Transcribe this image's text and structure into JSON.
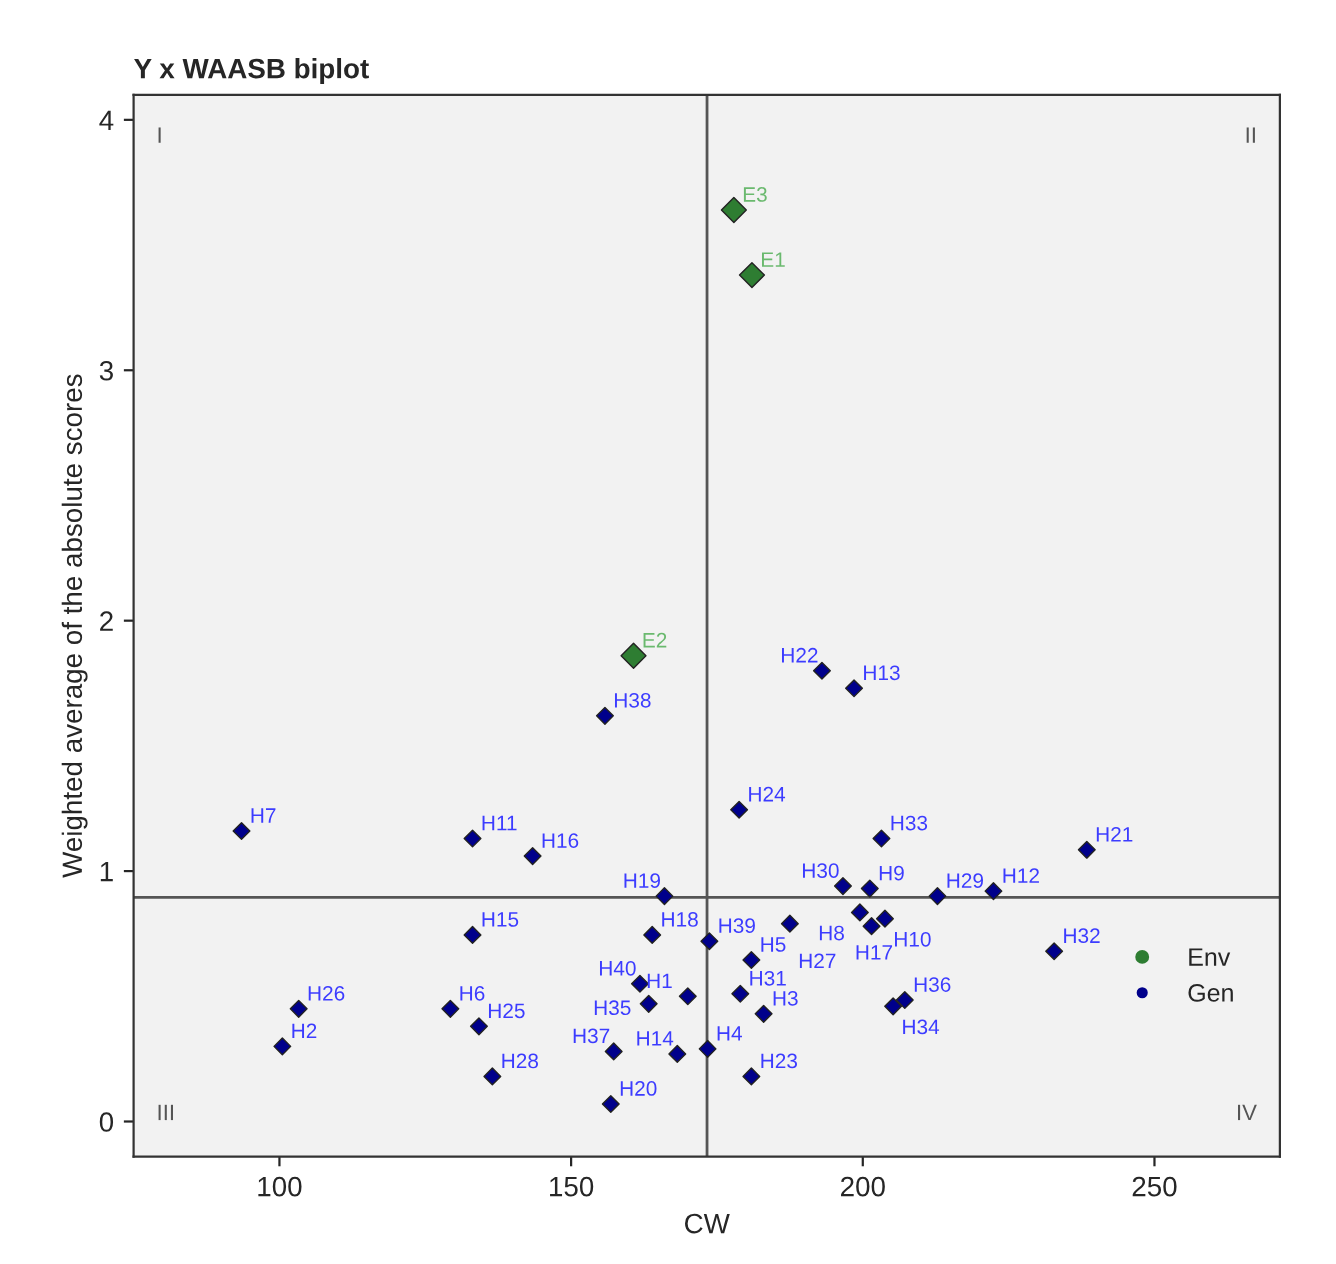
{
  "chart_data": {
    "type": "scatter",
    "title": "Y x WAASB biplot",
    "xlabel": "CW",
    "ylabel": "Weighted average of the absolute scores",
    "xlim": [
      75,
      271.5
    ],
    "ylim": [
      -0.14,
      4.1
    ],
    "xticks": [
      100,
      150,
      200,
      250
    ],
    "yticks": [
      0,
      1,
      2,
      3,
      4
    ],
    "grid": false,
    "legend": "bottom right",
    "marker": "diamond",
    "series": [
      {
        "name": "Env",
        "color": "#2e7d32",
        "x": [
          181.0,
          160.7,
          177.9
        ],
        "values": [
          3.38,
          1.86,
          3.64
        ]
      },
      {
        "name": "Gen",
        "color": "#00008b",
        "x": [
          170.0,
          100.5,
          183.0,
          173.4,
          180.9,
          129.3,
          93.5,
          199.5,
          201.2,
          203.8,
          133.1,
          222.4,
          198.5,
          168.2,
          133.1,
          143.4,
          201.5,
          163.9,
          166.0,
          156.8,
          238.4,
          193.0,
          180.9,
          178.8,
          134.2,
          103.3,
          187.5,
          136.5,
          212.8,
          196.6,
          179.0,
          232.8,
          203.2,
          205.2,
          163.3,
          207.2,
          157.3,
          155.8,
          173.7,
          161.8
        ],
        "values": [
          0.5,
          0.3,
          0.43,
          0.29,
          0.645,
          0.45,
          1.16,
          0.835,
          0.93,
          0.81,
          1.13,
          0.92,
          1.73,
          0.27,
          0.745,
          1.06,
          0.78,
          0.745,
          0.9,
          0.07,
          1.085,
          1.8,
          0.18,
          1.245,
          0.38,
          0.45,
          0.79,
          0.18,
          0.9,
          0.94,
          0.51,
          0.68,
          1.13,
          0.46,
          0.47,
          0.485,
          0.28,
          1.62,
          0.72,
          0.55
        ]
      }
    ],
    "ref_lines": [
      {
        "axis": "x",
        "value": 173.3,
        "color": "#555555"
      },
      {
        "axis": "y",
        "value": 0.895,
        "color": "#555555"
      }
    ],
    "annotations": [
      "I",
      "II",
      "III",
      "IV",
      {
        "text": "E1",
        "x": 181.0,
        "y": 3.38
      },
      {
        "text": "E2",
        "x": 160.7,
        "y": 1.86
      },
      {
        "text": "E3",
        "x": 177.9,
        "y": 3.64
      },
      {
        "text": "H1",
        "x": 170.0,
        "y": 0.5
      },
      {
        "text": "H2",
        "x": 100.5,
        "y": 0.3
      },
      {
        "text": "H3",
        "x": 183.0,
        "y": 0.43
      },
      {
        "text": "H4",
        "x": 173.4,
        "y": 0.29
      },
      {
        "text": "H5",
        "x": 180.9,
        "y": 0.645
      },
      {
        "text": "H6",
        "x": 129.3,
        "y": 0.45
      },
      {
        "text": "H7",
        "x": 93.5,
        "y": 1.16
      },
      {
        "text": "H8",
        "x": 199.5,
        "y": 0.835
      },
      {
        "text": "H9",
        "x": 201.2,
        "y": 0.93
      },
      {
        "text": "H10",
        "x": 203.8,
        "y": 0.81
      },
      {
        "text": "H11",
        "x": 133.1,
        "y": 1.13
      },
      {
        "text": "H12",
        "x": 222.4,
        "y": 0.92
      },
      {
        "text": "H13",
        "x": 198.5,
        "y": 1.73
      },
      {
        "text": "H14",
        "x": 168.2,
        "y": 0.27
      },
      {
        "text": "H15",
        "x": 133.1,
        "y": 0.745
      },
      {
        "text": "H16",
        "x": 143.4,
        "y": 1.06
      },
      {
        "text": "H17",
        "x": 201.5,
        "y": 0.78
      },
      {
        "text": "H18",
        "x": 163.9,
        "y": 0.745
      },
      {
        "text": "H19",
        "x": 166.0,
        "y": 0.9
      },
      {
        "text": "H20",
        "x": 156.8,
        "y": 0.07
      },
      {
        "text": "H21",
        "x": 238.4,
        "y": 1.085
      },
      {
        "text": "H22",
        "x": 193.0,
        "y": 1.8
      },
      {
        "text": "H23",
        "x": 180.9,
        "y": 0.18
      },
      {
        "text": "H24",
        "x": 178.8,
        "y": 1.245
      },
      {
        "text": "H25",
        "x": 134.2,
        "y": 0.38
      },
      {
        "text": "H26",
        "x": 103.3,
        "y": 0.45
      },
      {
        "text": "H27",
        "x": 187.5,
        "y": 0.79
      },
      {
        "text": "H28",
        "x": 136.5,
        "y": 0.18
      },
      {
        "text": "H29",
        "x": 212.8,
        "y": 0.9
      },
      {
        "text": "H30",
        "x": 196.6,
        "y": 0.94
      },
      {
        "text": "H31",
        "x": 179.0,
        "y": 0.51
      },
      {
        "text": "H32",
        "x": 232.8,
        "y": 0.68
      },
      {
        "text": "H33",
        "x": 203.2,
        "y": 1.13
      },
      {
        "text": "H34",
        "x": 205.2,
        "y": 0.46
      },
      {
        "text": "H35",
        "x": 163.3,
        "y": 0.47
      },
      {
        "text": "H36",
        "x": 207.2,
        "y": 0.485
      },
      {
        "text": "H37",
        "x": 157.3,
        "y": 0.28
      },
      {
        "text": "H38",
        "x": 155.8,
        "y": 1.62
      },
      {
        "text": "H39",
        "x": 173.7,
        "y": 0.72
      },
      {
        "text": "H40",
        "x": 161.8,
        "y": 0.55
      }
    ]
  }
}
